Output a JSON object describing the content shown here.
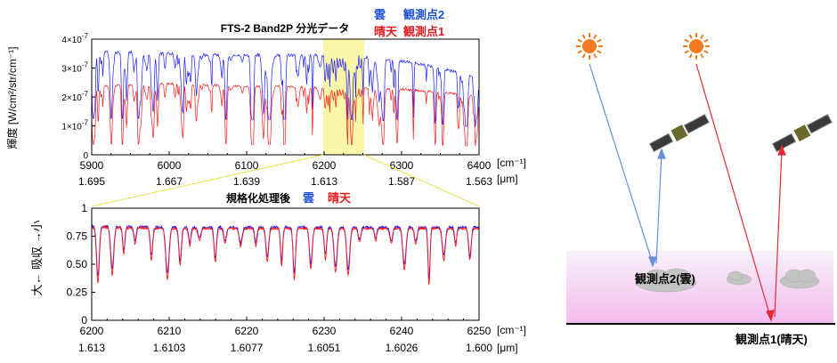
{
  "chart_data": [
    {
      "type": "line",
      "title": "FTS-2 Band2P 分光データ",
      "ylabel": "輝度 [W/cm²/str/cm⁻¹]",
      "x_unit": "[cm⁻¹]",
      "x2_unit": "[μm]",
      "xlim": [
        5900,
        6400
      ],
      "ylim": [
        0,
        4e-07
      ],
      "x_ticks": [
        "5900",
        "6000",
        "6100",
        "6200",
        "6300",
        "6400"
      ],
      "x2_ticks": [
        "1.695",
        "1.667",
        "1.639",
        "1.613",
        "1.587",
        "1.563"
      ],
      "y_ticks": [
        {
          "base": "0",
          "exp": ""
        },
        {
          "base": "1×10",
          "exp": "-7"
        },
        {
          "base": "2×10",
          "exp": "-7"
        },
        {
          "base": "3×10",
          "exp": "-7"
        },
        {
          "base": "4×10",
          "exp": "-7"
        }
      ],
      "highlight_range": [
        6200,
        6250
      ],
      "series": [
        {
          "name": "雲",
          "label_2": "観測点2",
          "color": "#1a1aff",
          "x": [
            5900,
            5950,
            6000,
            6050,
            6100,
            6150,
            6200,
            6250,
            6300,
            6350,
            6400
          ],
          "values": [
            3.6e-07,
            3.6e-07,
            3.55e-07,
            3.5e-07,
            3.5e-07,
            3.5e-07,
            3.5e-07,
            3.45e-07,
            3.3e-07,
            3.05e-07,
            2.7e-07
          ]
        },
        {
          "name": "晴天",
          "label_2": "観測点1",
          "color": "#ff1a1a",
          "x": [
            5900,
            5950,
            6000,
            6050,
            6100,
            6150,
            6200,
            6250,
            6300,
            6350,
            6400
          ],
          "values": [
            2.4e-07,
            2.45e-07,
            2.5e-07,
            2.45e-07,
            2.4e-07,
            2.4e-07,
            2.35e-07,
            2.35e-07,
            2.3e-07,
            2.2e-07,
            2.05e-07
          ]
        }
      ]
    },
    {
      "type": "line",
      "title": "規格化処理後",
      "ylabel": "大← 吸収 →小",
      "x_unit": "[cm⁻¹]",
      "x2_unit": "[μm]",
      "xlim": [
        6200,
        6250
      ],
      "ylim": [
        0,
        1
      ],
      "x_ticks": [
        "6200",
        "6210",
        "6220",
        "6230",
        "6240",
        "6250"
      ],
      "x2_ticks": [
        "1.613",
        "1.6103",
        "1.6077",
        "1.6051",
        "1.6026",
        "1.600"
      ],
      "y_ticks": [
        "0",
        "0.25",
        "0.50",
        "0.75",
        "1"
      ],
      "series": [
        {
          "name": "雲",
          "color": "#1a1aff",
          "x": [
            6200,
            6210,
            6220,
            6230,
            6240,
            6250
          ],
          "values": [
            0.85,
            0.84,
            0.84,
            0.84,
            0.84,
            0.84
          ]
        },
        {
          "name": "晴天",
          "color": "#ff1a1a",
          "x": [
            6200,
            6210,
            6220,
            6230,
            6240,
            6250
          ],
          "values": [
            0.84,
            0.83,
            0.83,
            0.83,
            0.83,
            0.83
          ]
        }
      ]
    }
  ],
  "diagram": {
    "sun_color": "#f47a20",
    "labels": {
      "point2": "観測点2(雲)",
      "point1": "観測点1(晴天)"
    }
  }
}
